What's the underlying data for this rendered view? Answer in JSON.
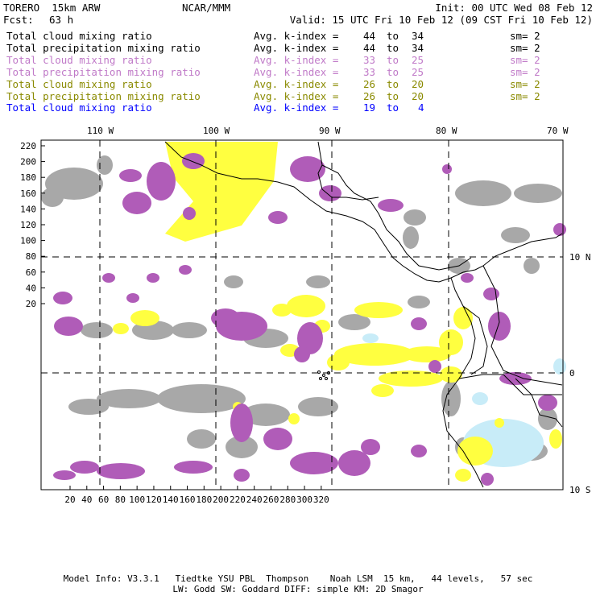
{
  "header": {
    "model": "TORERO  15km ARW",
    "org": "NCAR/MMM",
    "init": "Init: 00 UTC Wed 08 Feb 12",
    "fcst_label": "Fcst:",
    "fcst_value": "63 h",
    "valid": "Valid: 15 UTC Fri 10 Feb 12 (09 CST Fri 10 Feb 12)"
  },
  "legend": [
    {
      "field": "Total cloud mixing ratio",
      "avg": "Avg. k-index =",
      "k1": "44",
      "to": "to",
      "k2": "34",
      "sm": "sm= 2",
      "color": "#000000"
    },
    {
      "field": "Total precipitation mixing ratio",
      "avg": "Avg. k-index =",
      "k1": "44",
      "to": "to",
      "k2": "34",
      "sm": "sm= 2",
      "color": "#000000"
    },
    {
      "field": "Total cloud mixing ratio",
      "avg": "Avg. k-index =",
      "k1": "33",
      "to": "to",
      "k2": "25",
      "sm": "sm= 2",
      "color": "#c07ac8"
    },
    {
      "field": "Total precipitation mixing ratio",
      "avg": "Avg. k-index =",
      "k1": "33",
      "to": "to",
      "k2": "25",
      "sm": "sm= 2",
      "color": "#c07ac8"
    },
    {
      "field": "Total cloud mixing ratio",
      "avg": "Avg. k-index =",
      "k1": "26",
      "to": "to",
      "k2": "20",
      "sm": "sm= 2",
      "color": "#8a8a00"
    },
    {
      "field": "Total precipitation mixing ratio",
      "avg": "Avg. k-index =",
      "k1": "26",
      "to": "to",
      "k2": "20",
      "sm": "sm= 2",
      "color": "#8a8a00"
    },
    {
      "field": "Total cloud mixing ratio",
      "avg": "Avg. k-index =",
      "k1": "19",
      "to": "to",
      "k2": "4",
      "sm": "",
      "color": "#0000ff"
    }
  ],
  "map": {
    "lon_labels": [
      "110 W",
      "100 W",
      "90 W",
      "80 W",
      "70 W"
    ],
    "lat_labels": [
      "10 N",
      "0",
      "10 S"
    ],
    "y_ticks": [
      "220",
      "200",
      "180",
      "160",
      "140",
      "120",
      "100",
      "80",
      "60",
      "40",
      "20"
    ],
    "x_ticks": [
      "20",
      "40",
      "60",
      "80",
      "100",
      "120",
      "140",
      "160",
      "180",
      "200",
      "220",
      "240",
      "260",
      "280",
      "300",
      "320"
    ],
    "colors": {
      "gray": "#a8a8a8",
      "purple": "#b05cb8",
      "yellow": "#ffff40",
      "lightblue": "#c8ecf8",
      "coast": "#000000"
    }
  },
  "footer": {
    "line1": "Model Info: V3.3.1   Tiedtke YSU PBL  Thompson    Noah LSM  15 km,   44 levels,   57 sec",
    "line2": "LW: Godd SW: Goddard DIFF: simple KM: 2D Smagor"
  }
}
